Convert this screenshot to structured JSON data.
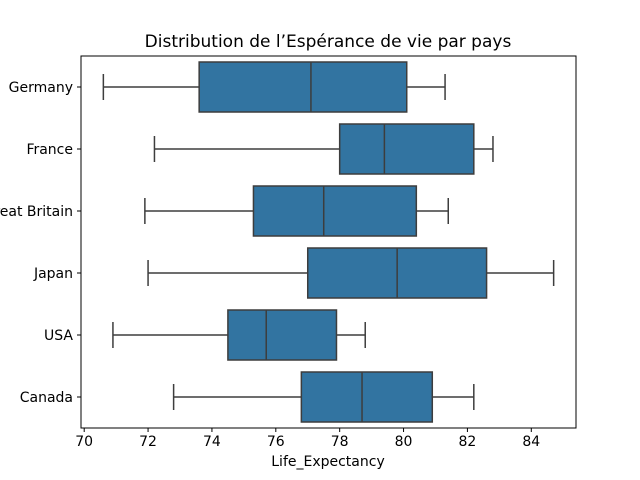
{
  "chart_data": {
    "type": "boxplot",
    "orientation": "horizontal",
    "title": "Distribution de l’Espérance de vie par pays",
    "xlabel": "Life_Expectancy",
    "ylabel": "",
    "categories": [
      "Germany",
      "France",
      "Great Britain",
      "Japan",
      "USA",
      "Canada"
    ],
    "series": [
      {
        "label": "Germany",
        "whisker_low": 70.6,
        "q1": 73.6,
        "median": 77.1,
        "q3": 80.1,
        "whisker_high": 81.3
      },
      {
        "label": "France",
        "whisker_low": 72.2,
        "q1": 78.0,
        "median": 79.4,
        "q3": 82.2,
        "whisker_high": 82.8
      },
      {
        "label": "Great Britain",
        "whisker_low": 71.9,
        "q1": 75.3,
        "median": 77.5,
        "q3": 80.4,
        "whisker_high": 81.4
      },
      {
        "label": "Japan",
        "whisker_low": 72.0,
        "q1": 77.0,
        "median": 79.8,
        "q3": 82.6,
        "whisker_high": 84.7
      },
      {
        "label": "USA",
        "whisker_low": 70.9,
        "q1": 74.5,
        "median": 75.7,
        "q3": 77.9,
        "whisker_high": 78.8
      },
      {
        "label": "Canada",
        "whisker_low": 72.8,
        "q1": 76.8,
        "median": 78.7,
        "q3": 80.9,
        "whisker_high": 82.2
      }
    ],
    "x_ticks": [
      70,
      72,
      74,
      76,
      78,
      80,
      82,
      84
    ],
    "xlim": [
      69.9,
      85.4
    ],
    "grid": false,
    "fliers": [],
    "legend": null,
    "colors": {
      "box_fill": "#3274a1",
      "box_edge": "#3d3d3d",
      "whisker": "#3d3d3d",
      "median": "#3d3d3d",
      "axis": "#000000",
      "text": "#000000",
      "background": "#ffffff"
    }
  }
}
